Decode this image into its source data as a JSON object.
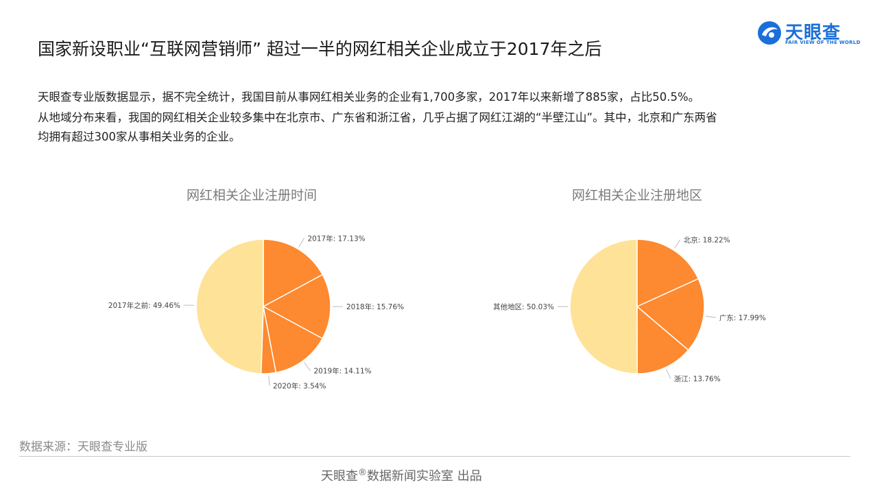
{
  "header": {
    "title": "国家新设职业“互联网营销师” 超过一半的网红相关企业成立于2017年之后",
    "logo_text": "天眼查",
    "logo_sub": "FAIR VIEW OF THE WORLD",
    "logo_color": "#1b6fd8"
  },
  "body": {
    "line1": "天眼查专业版数据显示，据不完全统计，我国目前从事网红相关业务的企业有1,700多家，2017年以来新增了885家，占比50.5%。",
    "line2": "从地域分布来看，我国的网红相关企业较多集中在北京市、广东省和浙江省，几乎占据了网红江湖的“半壁江山”。其中，北京和广东两省",
    "line3": "均拥有超过300家从事相关业务的企业。"
  },
  "chart_data": [
    {
      "type": "pie",
      "title": "网红相关企业注册时间",
      "labels": [
        "2017年",
        "2018年",
        "2019年",
        "2020年",
        "2017年之前"
      ],
      "values": [
        17.13,
        15.76,
        14.11,
        3.54,
        49.46
      ],
      "colors": [
        "#fd8930",
        "#fd8930",
        "#fd8930",
        "#fd8930",
        "#fee297"
      ]
    },
    {
      "type": "pie",
      "title": "网红相关企业注册地区",
      "labels": [
        "北京",
        "广东",
        "浙江",
        "其他地区"
      ],
      "values": [
        18.22,
        17.99,
        13.76,
        50.03
      ],
      "colors": [
        "#fd8930",
        "#fd8930",
        "#fd8930",
        "#fee297"
      ]
    }
  ],
  "source": "数据来源：天眼查专业版",
  "footer": {
    "brand": "天眼查",
    "reg": "®",
    "rest": "数据新闻实验室 出品"
  }
}
